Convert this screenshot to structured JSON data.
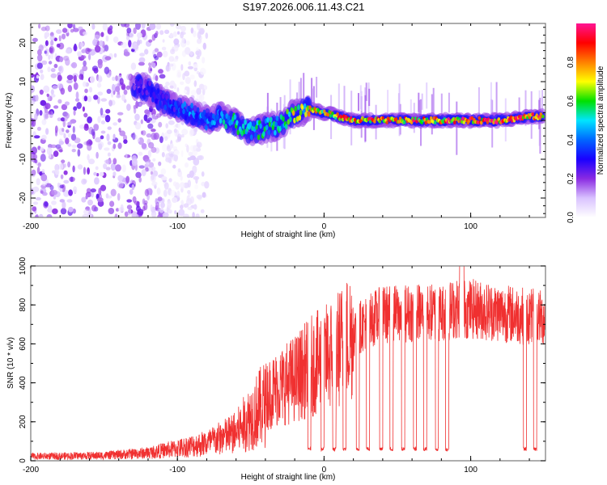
{
  "title": "S197.2026.006.11.43.C21",
  "chart_data": [
    {
      "type": "heatmap",
      "name": "spectrogram",
      "title": "S197.2026.006.11.43.C21",
      "xlabel": "Height of straight line (km)",
      "ylabel": "Frequency (Hz)",
      "xlim": [
        -200,
        151
      ],
      "ylim": [
        -25,
        25
      ],
      "xticks": [
        -200,
        -100,
        0,
        100
      ],
      "yticks": [
        -20,
        -10,
        0,
        10,
        20
      ],
      "colorbar": {
        "label": "Normalized spectral amplitude",
        "range": [
          0,
          1
        ],
        "ticks": [
          0.0,
          0.2,
          0.4,
          0.6,
          0.8
        ],
        "colormap": [
          "#ffffff",
          "#d9c2ff",
          "#8a2be2",
          "#1a00ff",
          "#0066ff",
          "#00e5ff",
          "#00e000",
          "#ffff00",
          "#ff8000",
          "#ff0000",
          "#ff1493"
        ]
      },
      "ridge": {
        "description": "dominant frequency vs height",
        "x": [
          -130,
          -120,
          -110,
          -100,
          -90,
          -80,
          -70,
          -60,
          -50,
          -40,
          -30,
          -20,
          -10,
          0,
          10,
          20,
          40,
          60,
          80,
          100,
          120,
          140,
          150
        ],
        "y": [
          9,
          8,
          5,
          3,
          2,
          0,
          1,
          -1,
          -3,
          -2,
          -1,
          2,
          3,
          2,
          1,
          0,
          0,
          0,
          0,
          0,
          0,
          1,
          1
        ],
        "amplitude": [
          0.25,
          0.3,
          0.35,
          0.4,
          0.45,
          0.45,
          0.5,
          0.55,
          0.55,
          0.6,
          0.6,
          0.7,
          0.75,
          0.8,
          0.85,
          0.9,
          0.9,
          0.9,
          0.92,
          0.95,
          0.95,
          0.9,
          0.9
        ]
      },
      "noise_region": {
        "x_from": -200,
        "x_to": -110,
        "amplitude": 0.12
      }
    },
    {
      "type": "line",
      "name": "snr",
      "xlabel": "Height of straight line (km)",
      "ylabel": "SNR (10 * v/v)",
      "xlim": [
        -200,
        151
      ],
      "ylim": [
        0,
        1000
      ],
      "xticks": [
        -200,
        -100,
        0,
        100
      ],
      "yticks": [
        0,
        200,
        400,
        600,
        800,
        1000
      ],
      "color": "#f03030",
      "envelope": {
        "x": [
          -200,
          -150,
          -120,
          -100,
          -80,
          -60,
          -50,
          -40,
          -30,
          -20,
          -10,
          0,
          10,
          20,
          30,
          40,
          60,
          80,
          90,
          100,
          120,
          140,
          151
        ],
        "y": [
          25,
          30,
          45,
          70,
          100,
          160,
          250,
          330,
          380,
          420,
          480,
          520,
          580,
          660,
          720,
          750,
          760,
          760,
          780,
          780,
          760,
          740,
          730
        ]
      },
      "peak": {
        "x": 94,
        "y": 1000
      },
      "dropouts_x": [
        -10,
        -1,
        7,
        14,
        23,
        30,
        39,
        46,
        54,
        62,
        69,
        77,
        84,
        137,
        144
      ],
      "dropout_level": 60
    }
  ]
}
